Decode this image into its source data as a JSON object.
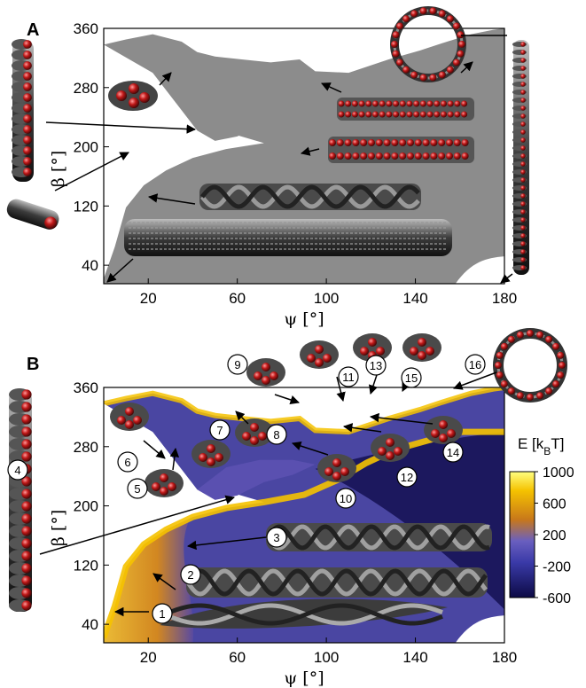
{
  "panels": {
    "a": {
      "letter": "A"
    },
    "b": {
      "letter": "B"
    }
  },
  "chart_data": [
    {
      "type": "heatmap",
      "panel": "A",
      "xlabel": "ψ [°]",
      "ylabel": "β [°]",
      "xlim": [
        0,
        180
      ],
      "ylim": [
        15,
        360
      ],
      "xticks": [
        20,
        60,
        100,
        140,
        180
      ],
      "yticks": [
        40,
        120,
        200,
        280,
        360
      ],
      "description_regions": {
        "fill_color": "#8c8c8c",
        "empty_color": "#ffffff"
      },
      "regions": {
        "upper_white_boundary": [
          [
            0,
            338
          ],
          [
            10,
            345
          ],
          [
            22,
            352
          ],
          [
            35,
            342
          ],
          [
            42,
            328
          ],
          [
            50,
            322
          ],
          [
            62,
            318
          ],
          [
            75,
            314
          ],
          [
            88,
            318
          ],
          [
            95,
            302
          ],
          [
            110,
            300
          ],
          [
            128,
            318
          ],
          [
            142,
            330
          ],
          [
            152,
            340
          ],
          [
            165,
            352
          ],
          [
            175,
            358
          ],
          [
            180,
            360
          ]
        ],
        "lower_white_boundary": [
          [
            0,
            22
          ],
          [
            5,
            65
          ],
          [
            10,
            118
          ],
          [
            18,
            148
          ],
          [
            28,
            168
          ],
          [
            40,
            185
          ],
          [
            55,
            197
          ],
          [
            72,
            205
          ],
          [
            90,
            215
          ],
          [
            105,
            235
          ],
          [
            118,
            258
          ],
          [
            128,
            272
          ],
          [
            138,
            282
          ],
          [
            150,
            292
          ],
          [
            160,
            300
          ],
          [
            180,
            300
          ]
        ],
        "left_cusp": [
          [
            42,
            222
          ],
          [
            50,
            208
          ],
          [
            60,
            214
          ],
          [
            72,
            232
          ],
          [
            85,
            242
          ],
          [
            95,
            256
          ],
          [
            85,
            262
          ],
          [
            70,
            262
          ],
          [
            55,
            252
          ]
        ]
      }
    },
    {
      "type": "heatmap",
      "panel": "B",
      "xlabel": "ψ [°]",
      "ylabel": "β [°]",
      "xlim": [
        0,
        180
      ],
      "ylim": [
        15,
        360
      ],
      "xticks": [
        20,
        60,
        100,
        140,
        180
      ],
      "yticks": [
        40,
        120,
        200,
        280,
        360
      ],
      "colorbar": {
        "label": "E [k_B T]",
        "ticks": [
          1000,
          600,
          200,
          -200,
          -600
        ],
        "range": [
          -600,
          1000
        ],
        "stops": [
          "#0c0a45",
          "#3a3aa8",
          "#6a5fbf",
          "#c8781a",
          "#f5c200",
          "#ffff80"
        ]
      },
      "structures": [
        {
          "id": "1",
          "psi": 22,
          "beta": 40
        },
        {
          "id": "2",
          "psi": 33,
          "beta": 85
        },
        {
          "id": "3",
          "psi": 70,
          "beta": 150
        },
        {
          "id": "4",
          "psi": 0,
          "beta": 255
        },
        {
          "id": "5",
          "psi": 27,
          "beta": 235
        },
        {
          "id": "6",
          "psi": 27,
          "beta": 270
        },
        {
          "id": "7",
          "psi": 45,
          "beta": 305
        },
        {
          "id": "8",
          "psi": 70,
          "beta": 302
        },
        {
          "id": "9",
          "psi": 56,
          "beta": 390
        },
        {
          "id": "10",
          "psi": 92,
          "beta": 225
        },
        {
          "id": "11",
          "psi": 98,
          "beta": 373
        },
        {
          "id": "12",
          "psi": 122,
          "beta": 247
        },
        {
          "id": "13",
          "psi": 118,
          "beta": 380
        },
        {
          "id": "14",
          "psi": 137,
          "beta": 262
        },
        {
          "id": "15",
          "psi": 138,
          "beta": 379
        },
        {
          "id": "16",
          "psi": 154,
          "beta": 392
        }
      ]
    }
  ]
}
